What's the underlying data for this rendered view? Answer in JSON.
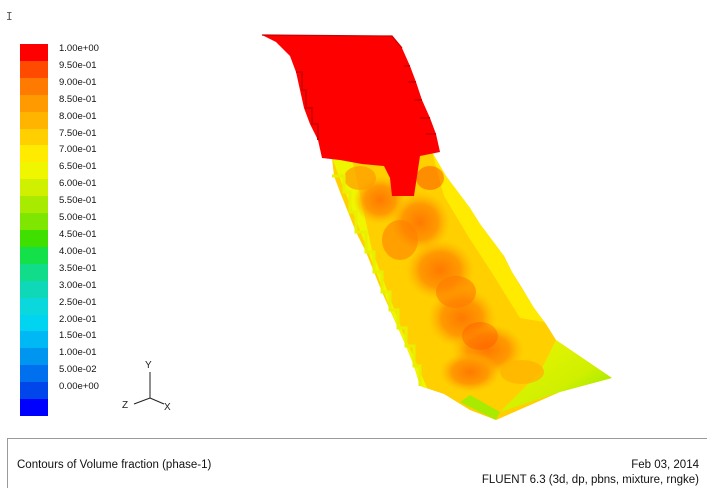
{
  "viewport": {
    "corner_glyph": "I"
  },
  "legend": {
    "colors": [
      "#ff0000",
      "#ff4b00",
      "#ff7a00",
      "#ff9a00",
      "#ffb400",
      "#ffcf00",
      "#ffeb00",
      "#f0f500",
      "#cff000",
      "#a8eb00",
      "#7ee600",
      "#3fe000",
      "#14e04a",
      "#10dc8a",
      "#0ed8b8",
      "#0ad8dc",
      "#00d4f0",
      "#00b8f4",
      "#0096f0",
      "#0070ee",
      "#0046ea",
      "#0000ff"
    ],
    "labels": [
      "1.00e+00",
      "9.50e-01",
      "9.00e-01",
      "8.50e-01",
      "8.00e-01",
      "7.50e-01",
      "7.00e-01",
      "6.50e-01",
      "6.00e-01",
      "5.50e-01",
      "5.00e-01",
      "4.50e-01",
      "4.00e-01",
      "3.50e-01",
      "3.00e-01",
      "2.50e-01",
      "2.00e-01",
      "1.50e-01",
      "1.00e-01",
      "5.00e-02",
      "0.00e+00"
    ]
  },
  "axes": {
    "y": "Y",
    "z": "Z",
    "x": "X"
  },
  "footer": {
    "title": "Contours of Volume fraction (phase-1)",
    "date": "Feb 03, 2014",
    "solver": "FLUENT 6.3 (3d, dp, pbns, mixture, rngke)"
  }
}
